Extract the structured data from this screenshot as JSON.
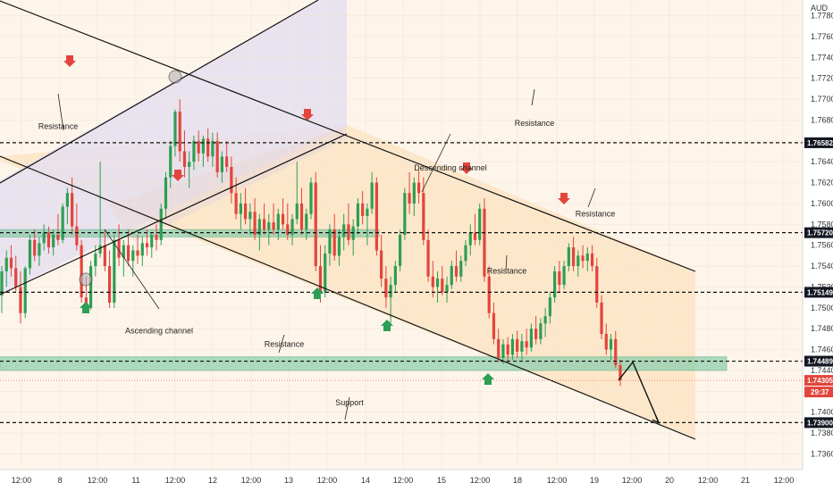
{
  "chart_data": {
    "type": "candlestick",
    "currency": "AUD",
    "ylim": [
      1.7345,
      1.7795
    ],
    "y_ticks": [
      1.736,
      1.738,
      1.74,
      1.742,
      1.744,
      1.746,
      1.748,
      1.75,
      1.752,
      1.754,
      1.756,
      1.758,
      1.76,
      1.762,
      1.764,
      1.766,
      1.768,
      1.77,
      1.772,
      1.774,
      1.776,
      1.778
    ],
    "y_tick_labels": [
      "1.73600",
      "1.73800",
      "1.74000",
      "1.74200",
      "1.74400",
      "1.74600",
      "1.74800",
      "1.75000",
      "1.75200",
      "1.75400",
      "1.75600",
      "1.75800",
      "1.76000",
      "1.76200",
      "1.76400",
      "1.76600",
      "1.76800",
      "1.77000",
      "1.77200",
      "1.77400",
      "1.77600",
      "1.77800"
    ],
    "x_ticks": [
      {
        "label": "12:00",
        "x": 24
      },
      {
        "label": "8",
        "x": 67
      },
      {
        "label": "12:00",
        "x": 109
      },
      {
        "label": "11",
        "x": 152
      },
      {
        "label": "12:00",
        "x": 196
      },
      {
        "label": "12",
        "x": 238
      },
      {
        "label": "12:00",
        "x": 281
      },
      {
        "label": "13",
        "x": 323
      },
      {
        "label": "12:00",
        "x": 366
      },
      {
        "label": "14",
        "x": 409
      },
      {
        "label": "12:00",
        "x": 451
      },
      {
        "label": "15",
        "x": 494
      },
      {
        "label": "12:00",
        "x": 537
      },
      {
        "label": "18",
        "x": 579
      },
      {
        "label": "12:00",
        "x": 623
      },
      {
        "label": "19",
        "x": 665
      },
      {
        "label": "12:00",
        "x": 707
      },
      {
        "label": "20",
        "x": 749
      },
      {
        "label": "12:00",
        "x": 792
      },
      {
        "label": "21",
        "x": 834
      },
      {
        "label": "12:00",
        "x": 877
      }
    ],
    "horizontal_levels": [
      {
        "value": 1.76582,
        "label": "1.76582",
        "style": "dashed"
      },
      {
        "value": 1.7572,
        "label": "1.75720",
        "style": "dashed"
      },
      {
        "value": 1.75149,
        "label": "1.75149",
        "style": "dashed"
      },
      {
        "value": 1.74489,
        "label": "1.74489",
        "style": "dashed"
      },
      {
        "value": 1.739,
        "label": "1.73900",
        "style": "dashed"
      }
    ],
    "current_price": {
      "label": "1.74305",
      "countdown": "29:37",
      "value": 1.74305
    },
    "zones": [
      {
        "name": "upper-zone",
        "from": 1.7568,
        "to": 1.7575,
        "x_end": 424
      },
      {
        "name": "lower-zone",
        "from": 1.744,
        "to": 1.7453,
        "x_end": 813
      }
    ],
    "annotations": [
      {
        "text": "Resistance",
        "x": 65,
        "value": 1.7674
      },
      {
        "text": "Resistance",
        "x": 598,
        "value": 1.7677
      },
      {
        "text": "Descending channel",
        "x": 504,
        "value": 1.7634
      },
      {
        "text": "Resistance",
        "x": 666,
        "value": 1.759
      },
      {
        "text": "Resistance",
        "x": 567,
        "value": 1.75355
      },
      {
        "text": "Ascending channel",
        "x": 178,
        "value": 1.7478
      },
      {
        "text": "Resistance",
        "x": 318,
        "value": 1.7465
      },
      {
        "text": "Support",
        "x": 391,
        "value": 1.7409
      }
    ],
    "red_arrows_down_x": [
      78,
      199,
      344,
      522,
      631
    ],
    "green_arrows_up_x": [
      96,
      355,
      433,
      546
    ],
    "circles_x": [
      196,
      96
    ],
    "candles": [
      [
        1.7512,
        1.754,
        1.7495,
        1.7535
      ],
      [
        1.7535,
        1.7555,
        1.752,
        1.7548
      ],
      [
        1.7548,
        1.756,
        1.753,
        1.7538
      ],
      [
        1.7538,
        1.755,
        1.7515,
        1.752
      ],
      [
        1.752,
        1.7535,
        1.7485,
        1.7495
      ],
      [
        1.7495,
        1.754,
        1.749,
        1.7538
      ],
      [
        1.7538,
        1.757,
        1.7532,
        1.7565
      ],
      [
        1.7565,
        1.7575,
        1.7545,
        1.755
      ],
      [
        1.755,
        1.7568,
        1.754,
        1.7562
      ],
      [
        1.7562,
        1.758,
        1.7555,
        1.7572
      ],
      [
        1.7572,
        1.7578,
        1.7552,
        1.7558
      ],
      [
        1.7558,
        1.7575,
        1.755,
        1.757
      ],
      [
        1.757,
        1.759,
        1.756,
        1.7565
      ],
      [
        1.7565,
        1.76,
        1.7562,
        1.7597
      ],
      [
        1.7597,
        1.7615,
        1.758,
        1.761
      ],
      [
        1.761,
        1.7625,
        1.757,
        1.7578
      ],
      [
        1.7578,
        1.76,
        1.7555,
        1.756
      ],
      [
        1.756,
        1.7565,
        1.7505,
        1.751
      ],
      [
        1.751,
        1.753,
        1.7495,
        1.75
      ],
      [
        1.75,
        1.7545,
        1.7498,
        1.754
      ],
      [
        1.754,
        1.756,
        1.753,
        1.7552
      ],
      [
        1.7552,
        1.764,
        1.7548,
        1.756
      ],
      [
        1.756,
        1.7575,
        1.7535,
        1.754
      ],
      [
        1.754,
        1.7555,
        1.75,
        1.7505
      ],
      [
        1.7505,
        1.757,
        1.75,
        1.7565
      ],
      [
        1.7565,
        1.758,
        1.754,
        1.7548
      ],
      [
        1.7548,
        1.7565,
        1.753,
        1.756
      ],
      [
        1.756,
        1.7575,
        1.754,
        1.7545
      ],
      [
        1.7545,
        1.756,
        1.753,
        1.7555
      ],
      [
        1.7555,
        1.757,
        1.7542,
        1.755
      ],
      [
        1.755,
        1.7568,
        1.754,
        1.7562
      ],
      [
        1.7562,
        1.7575,
        1.755,
        1.7558
      ],
      [
        1.7558,
        1.7572,
        1.7548,
        1.757
      ],
      [
        1.757,
        1.758,
        1.7555,
        1.7565
      ],
      [
        1.7565,
        1.76,
        1.756,
        1.7595
      ],
      [
        1.7595,
        1.763,
        1.7585,
        1.7625
      ],
      [
        1.7625,
        1.766,
        1.7615,
        1.7655
      ],
      [
        1.7655,
        1.769,
        1.7645,
        1.7688
      ],
      [
        1.7688,
        1.77,
        1.764,
        1.765
      ],
      [
        1.765,
        1.767,
        1.7625,
        1.7635
      ],
      [
        1.7635,
        1.765,
        1.7615,
        1.764
      ],
      [
        1.764,
        1.7665,
        1.7632,
        1.766
      ],
      [
        1.766,
        1.767,
        1.764,
        1.7648
      ],
      [
        1.7648,
        1.7665,
        1.7635,
        1.7662
      ],
      [
        1.7662,
        1.7672,
        1.764,
        1.7645
      ],
      [
        1.7645,
        1.7668,
        1.7635,
        1.766
      ],
      [
        1.766,
        1.7668,
        1.7625,
        1.763
      ],
      [
        1.763,
        1.765,
        1.762,
        1.7645
      ],
      [
        1.7645,
        1.766,
        1.763,
        1.7635
      ],
      [
        1.7635,
        1.7645,
        1.76,
        1.761
      ],
      [
        1.761,
        1.7625,
        1.7585,
        1.759
      ],
      [
        1.759,
        1.761,
        1.7575,
        1.76
      ],
      [
        1.76,
        1.7615,
        1.758,
        1.7585
      ],
      [
        1.7585,
        1.76,
        1.757,
        1.7592
      ],
      [
        1.7592,
        1.7605,
        1.7565,
        1.757
      ],
      [
        1.757,
        1.759,
        1.7555,
        1.7585
      ],
      [
        1.7585,
        1.76,
        1.757,
        1.7575
      ],
      [
        1.7575,
        1.759,
        1.756,
        1.7582
      ],
      [
        1.7582,
        1.76,
        1.757,
        1.7575
      ],
      [
        1.7575,
        1.7595,
        1.7565,
        1.759
      ],
      [
        1.759,
        1.7605,
        1.7575,
        1.758
      ],
      [
        1.758,
        1.76,
        1.7565,
        1.757
      ],
      [
        1.757,
        1.759,
        1.756,
        1.7585
      ],
      [
        1.7585,
        1.764,
        1.758,
        1.76
      ],
      [
        1.76,
        1.7615,
        1.757,
        1.7575
      ],
      [
        1.7575,
        1.7595,
        1.7565,
        1.759
      ],
      [
        1.759,
        1.7625,
        1.7585,
        1.762
      ],
      [
        1.762,
        1.763,
        1.7535,
        1.754
      ],
      [
        1.754,
        1.756,
        1.7505,
        1.7515
      ],
      [
        1.7515,
        1.756,
        1.751,
        1.7552
      ],
      [
        1.7552,
        1.758,
        1.754,
        1.7575
      ],
      [
        1.7575,
        1.759,
        1.7545,
        1.755
      ],
      [
        1.755,
        1.7575,
        1.754,
        1.7568
      ],
      [
        1.7568,
        1.759,
        1.7555,
        1.758
      ],
      [
        1.758,
        1.76,
        1.756,
        1.7565
      ],
      [
        1.7565,
        1.7585,
        1.755,
        1.7578
      ],
      [
        1.7578,
        1.7605,
        1.757,
        1.76
      ],
      [
        1.76,
        1.7612,
        1.758,
        1.7588
      ],
      [
        1.7588,
        1.76,
        1.756,
        1.7595
      ],
      [
        1.7595,
        1.763,
        1.759,
        1.762
      ],
      [
        1.762,
        1.7625,
        1.755,
        1.7555
      ],
      [
        1.7555,
        1.757,
        1.752,
        1.7528
      ],
      [
        1.7528,
        1.754,
        1.75,
        1.751
      ],
      [
        1.751,
        1.753,
        1.7485,
        1.7522
      ],
      [
        1.7522,
        1.7545,
        1.7515,
        1.754
      ],
      [
        1.754,
        1.7575,
        1.7535,
        1.757
      ],
      [
        1.757,
        1.7615,
        1.7565,
        1.761
      ],
      [
        1.761,
        1.763,
        1.759,
        1.76
      ],
      [
        1.76,
        1.7625,
        1.7588,
        1.762
      ],
      [
        1.762,
        1.7632,
        1.76,
        1.761
      ],
      [
        1.761,
        1.7625,
        1.756,
        1.7565
      ],
      [
        1.7565,
        1.7575,
        1.7525,
        1.753
      ],
      [
        1.753,
        1.7545,
        1.751,
        1.752
      ],
      [
        1.752,
        1.7535,
        1.7505,
        1.7528
      ],
      [
        1.7528,
        1.754,
        1.7512,
        1.7515
      ],
      [
        1.7515,
        1.753,
        1.7505,
        1.7522
      ],
      [
        1.7522,
        1.7545,
        1.7518,
        1.754
      ],
      [
        1.754,
        1.7555,
        1.7525,
        1.753
      ],
      [
        1.753,
        1.755,
        1.7525,
        1.7545
      ],
      [
        1.7545,
        1.7565,
        1.754,
        1.756
      ],
      [
        1.756,
        1.758,
        1.755,
        1.7572
      ],
      [
        1.7572,
        1.759,
        1.756,
        1.7565
      ],
      [
        1.7565,
        1.76,
        1.756,
        1.7595
      ],
      [
        1.7595,
        1.7605,
        1.7525,
        1.753
      ],
      [
        1.753,
        1.754,
        1.749,
        1.7495
      ],
      [
        1.7495,
        1.7505,
        1.7465,
        1.747
      ],
      [
        1.747,
        1.748,
        1.7448,
        1.7452
      ],
      [
        1.7452,
        1.747,
        1.7446,
        1.7465
      ],
      [
        1.7465,
        1.7472,
        1.7448,
        1.7455
      ],
      [
        1.7455,
        1.7475,
        1.745,
        1.747
      ],
      [
        1.747,
        1.7478,
        1.7452,
        1.7458
      ],
      [
        1.7458,
        1.7475,
        1.745,
        1.7468
      ],
      [
        1.7468,
        1.748,
        1.7455,
        1.7462
      ],
      [
        1.7462,
        1.7485,
        1.7458,
        1.748
      ],
      [
        1.748,
        1.7492,
        1.7465,
        1.747
      ],
      [
        1.747,
        1.749,
        1.7465,
        1.7485
      ],
      [
        1.7485,
        1.75,
        1.7472,
        1.7492
      ],
      [
        1.7492,
        1.7515,
        1.7485,
        1.751
      ],
      [
        1.751,
        1.754,
        1.7505,
        1.7535
      ],
      [
        1.7535,
        1.7545,
        1.7515,
        1.7522
      ],
      [
        1.7522,
        1.7545,
        1.7518,
        1.754
      ],
      [
        1.754,
        1.7562,
        1.7535,
        1.7558
      ],
      [
        1.7558,
        1.7568,
        1.7535,
        1.754
      ],
      [
        1.754,
        1.7555,
        1.753,
        1.755
      ],
      [
        1.755,
        1.756,
        1.7538,
        1.7545
      ],
      [
        1.7545,
        1.7558,
        1.7535,
        1.7552
      ],
      [
        1.7552,
        1.756,
        1.7535,
        1.754
      ],
      [
        1.754,
        1.7548,
        1.75,
        1.7505
      ],
      [
        1.7505,
        1.7512,
        1.747,
        1.7475
      ],
      [
        1.7475,
        1.7485,
        1.7455,
        1.746
      ],
      [
        1.746,
        1.7475,
        1.745,
        1.747
      ],
      [
        1.747,
        1.7478,
        1.7442,
        1.7445
      ],
      [
        1.7445,
        1.745,
        1.7425,
        1.74305
      ]
    ]
  },
  "projection_path_values": [
    [
      692,
      1.74305
    ],
    [
      708,
      1.7448
    ],
    [
      737,
      1.739
    ]
  ]
}
